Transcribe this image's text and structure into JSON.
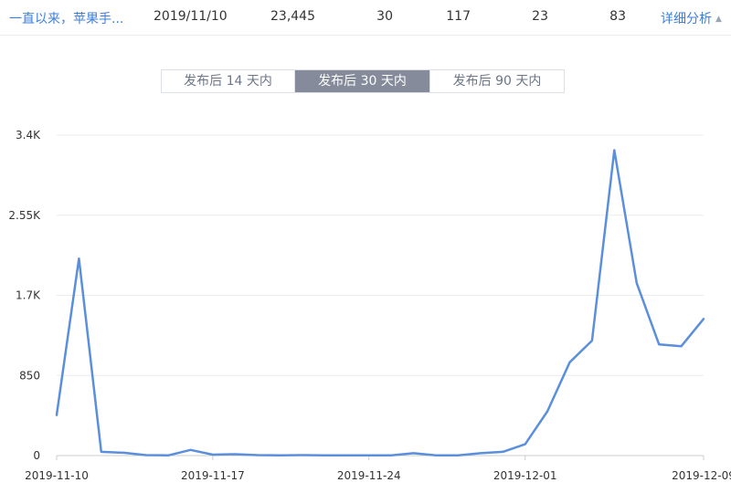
{
  "table_row": {
    "title": "一直以来，苹果手...",
    "date": "2019/11/10",
    "metrics": [
      "23,445",
      "30",
      "117",
      "23",
      "83"
    ],
    "detail_link": "详细分析",
    "caret_icon": "caret-up-icon"
  },
  "tabs": [
    {
      "label": "发布后 14 天内",
      "active": false
    },
    {
      "label": "发布后 30 天内",
      "active": true
    },
    {
      "label": "发布后 90 天内",
      "active": false
    }
  ],
  "colors": {
    "link": "#3f7fd8",
    "line": "#5b8fdc",
    "active_tab": "#858b9b"
  },
  "chart_data": {
    "type": "line",
    "x_start": "2019-11-10",
    "x_end": "2019-12-09",
    "xtick_labels": [
      "2019-11-10",
      "2019-11-17",
      "2019-11-24",
      "2019-12-01",
      "2019-12-09"
    ],
    "ytick_values": [
      0,
      850,
      1700,
      2550,
      3400
    ],
    "ytick_labels": [
      "0",
      "850",
      "1.7K",
      "2.55K",
      "3.4K"
    ],
    "ylim": [
      0,
      3400
    ],
    "grid": true,
    "values": [
      430,
      2090,
      40,
      30,
      5,
      2,
      60,
      10,
      15,
      5,
      3,
      5,
      2,
      2,
      2,
      2,
      25,
      3,
      2,
      25,
      40,
      120,
      470,
      990,
      1220,
      3240,
      1830,
      1180,
      1160,
      1450
    ]
  }
}
